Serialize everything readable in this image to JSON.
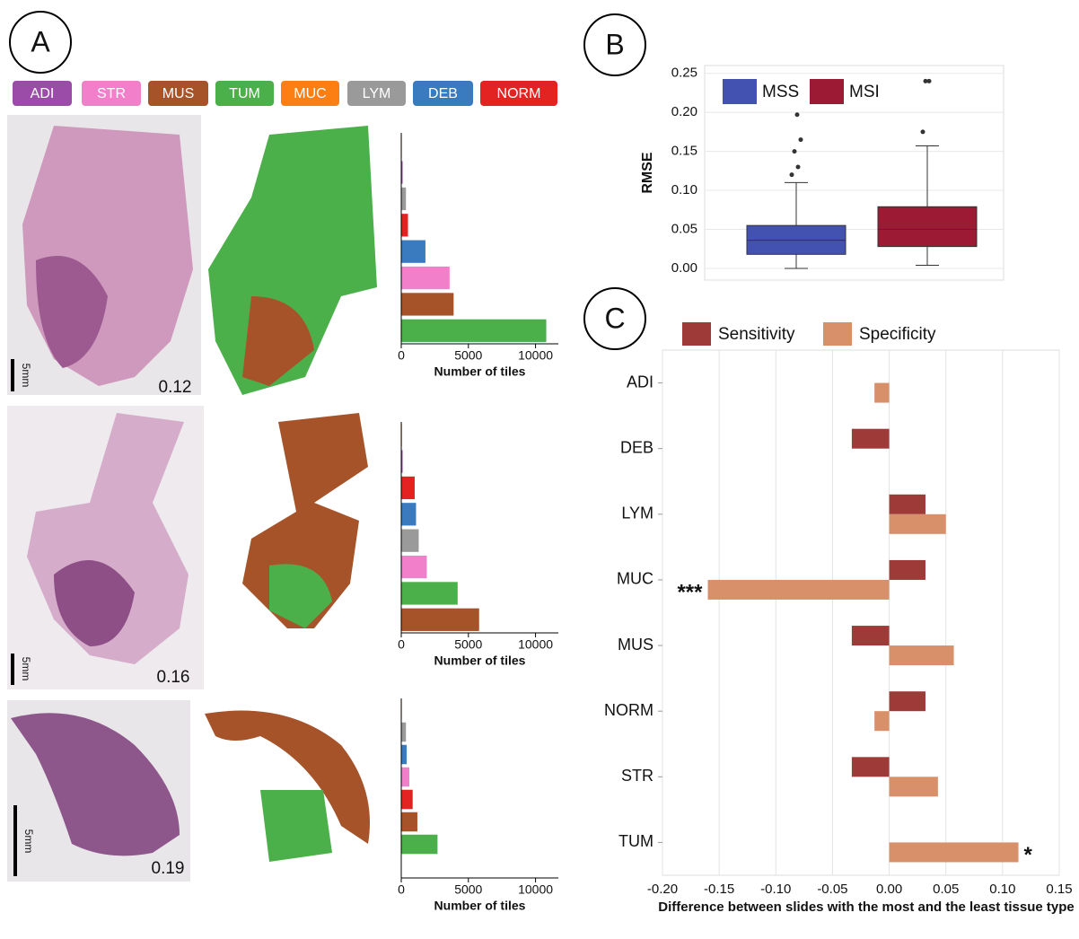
{
  "panels": {
    "labels": [
      "A",
      "B",
      "C"
    ]
  },
  "tissue_legend": [
    {
      "name": "ADI",
      "color": "#9b4ba8"
    },
    {
      "name": "STR",
      "color": "#f27fc9"
    },
    {
      "name": "MUS",
      "color": "#a6532a"
    },
    {
      "name": "TUM",
      "color": "#4cb04a"
    },
    {
      "name": "MUC",
      "color": "#fb7f12"
    },
    {
      "name": "LYM",
      "color": "#9a9a9a"
    },
    {
      "name": "DEB",
      "color": "#3a7bc0"
    },
    {
      "name": "NORM",
      "color": "#e32222"
    }
  ],
  "slides": [
    {
      "scale_bar": "5mm",
      "score": 0.12
    },
    {
      "scale_bar": "5mm",
      "score": 0.16
    },
    {
      "scale_bar": "5mm",
      "score": 0.19
    }
  ],
  "chart_data": [
    {
      "type": "bar",
      "xlabel": "Number of tiles",
      "categories": [
        null,
        null,
        null,
        null,
        null,
        null,
        null,
        null
      ],
      "values": [
        40,
        100,
        350,
        500,
        1800,
        3600,
        3900,
        10800
      ],
      "colors": [
        "#fb7f12",
        "#9b4ba8",
        "#9a9a9a",
        "#e32222",
        "#3a7bc0",
        "#f27fc9",
        "#a6532a",
        "#4cb04a"
      ],
      "xlim": [
        0,
        11700
      ],
      "xticks": [
        0,
        5000,
        10000
      ]
    },
    {
      "type": "bar",
      "xlabel": "Number of tiles",
      "categories": [
        null,
        null,
        null,
        null,
        null,
        null,
        null,
        null
      ],
      "values": [
        50,
        100,
        1000,
        1100,
        1300,
        1900,
        4200,
        5800
      ],
      "colors": [
        "#fb7f12",
        "#9b4ba8",
        "#e32222",
        "#3a7bc0",
        "#9a9a9a",
        "#f27fc9",
        "#4cb04a",
        "#a6532a"
      ],
      "xlim": [
        0,
        11700
      ],
      "xticks": [
        0,
        5000,
        10000
      ]
    },
    {
      "type": "bar",
      "xlabel": "Number of tiles",
      "categories": [
        null,
        null,
        null,
        null,
        null,
        null,
        null,
        null
      ],
      "values": [
        40,
        350,
        400,
        600,
        850,
        1200,
        2700,
        0
      ],
      "colors": [
        "#fb7f12",
        "#9a9a9a",
        "#3a7bc0",
        "#f27fc9",
        "#e32222",
        "#a6532a",
        "#4cb04a",
        "#9b4ba8"
      ],
      "xlim": [
        0,
        11700
      ],
      "xticks": [
        0,
        5000,
        10000
      ]
    },
    {
      "type": "box",
      "ylabel": "RMSE",
      "ylim": [
        -0.015,
        0.26
      ],
      "yticks": [
        {
          "value": 0,
          "label": "0.00"
        },
        0.05,
        {
          "value": 0.1,
          "label": "0.10"
        },
        0.15,
        {
          "value": 0.2,
          "label": "0.20"
        },
        0.25
      ],
      "grid": true,
      "series": [
        {
          "name": "MSS",
          "color": "#4352b0",
          "whislo": 0,
          "q1": 0.018,
          "med": 0.036,
          "q3": 0.055,
          "whishi": 0.11,
          "fliers": [
            0.12,
            0.13,
            0.15,
            0.165,
            0.197
          ]
        },
        {
          "name": "MSI",
          "color": "#9c1a33",
          "whislo": 0.004,
          "q1": 0.028,
          "med": 0.05,
          "q3": 0.079,
          "whishi": 0.157,
          "fliers": [
            0.175,
            0.24,
            0.24
          ]
        }
      ]
    },
    {
      "type": "bar",
      "xlabel": "Difference between slides with the most and the least tissue type",
      "categories": [
        "ADI",
        "DEB",
        "LYM",
        "MUC",
        "MUS",
        "NORM",
        "STR",
        "TUM"
      ],
      "series": [
        {
          "name": "Sensitivity",
          "color": "#9e3b39",
          "values": [
            null,
            -0.033,
            0.032,
            0.032,
            -0.033,
            0.032,
            -0.033,
            null
          ]
        },
        {
          "name": "Specificity",
          "color": "#d8906a",
          "values": [
            -0.013,
            null,
            0.05,
            -0.16,
            0.057,
            -0.013,
            0.043,
            0.114
          ]
        }
      ],
      "annotations": [
        {
          "text": "***"
        },
        {
          "text": "*"
        }
      ],
      "xlim": [
        -0.2,
        0.15
      ],
      "xticks": [
        {
          "value": -0.2,
          "label": "-0.20"
        },
        -0.15,
        {
          "value": -0.1,
          "label": "-0.10"
        },
        -0.05,
        {
          "value": 0,
          "label": "0.00"
        },
        0.05,
        {
          "value": 0.1,
          "label": "0.10"
        },
        0.15
      ],
      "grid": true
    }
  ]
}
